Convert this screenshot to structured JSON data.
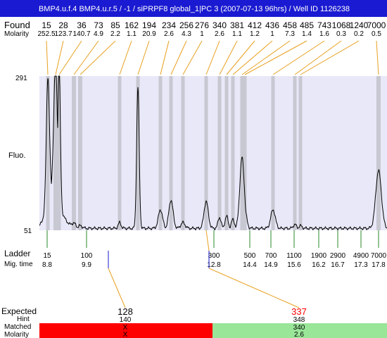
{
  "header": {
    "title": "BMP4.u.f.4  BMP4.u.r.5 / -1 / siPRPF8 global_1|PC 3 (2007-07-13 96hrs) / Well ID 1126238",
    "background": "#1a1ad2"
  },
  "row_labels": {
    "found": "Found",
    "molarity": "Molarity",
    "fluo": "Fluo.",
    "ladder": "Ladder",
    "mig_time": "Mig. time",
    "expected": "Expected",
    "hint": "Hint",
    "matched": "Matched",
    "molarity_bottom": "Molarity"
  },
  "found_sizes": [
    "15",
    "28",
    "36",
    "73",
    "85",
    "162",
    "194",
    "234",
    "256",
    "276",
    "340",
    "381",
    "412",
    "436",
    "458",
    "485",
    "743",
    "1068",
    "1240",
    "7000"
  ],
  "found_molarity": [
    "252.5",
    "123.7",
    "140.7",
    "4.9",
    "2.2",
    "1.1",
    "20.9",
    "2.6",
    "4.3",
    "1",
    "2.6",
    "1.1",
    "1.2",
    "1",
    "7.3",
    "1.4",
    "1.6",
    "0.3",
    "0.2",
    "0.5"
  ],
  "ladder": [
    {
      "size": "15",
      "time": "8.8"
    },
    {
      "size": "100",
      "time": "9.9"
    },
    {
      "size": "300",
      "time": "12.8"
    },
    {
      "size": "500",
      "time": "14.4"
    },
    {
      "size": "700",
      "time": "14.9"
    },
    {
      "size": "1100",
      "time": "15.6"
    },
    {
      "size": "1900",
      "time": "16.2"
    },
    {
      "size": "2900",
      "time": "16.7"
    },
    {
      "size": "4900",
      "time": "17.3"
    },
    {
      "size": "7000",
      "time": "17.8"
    }
  ],
  "expected": [
    {
      "size": "128",
      "hint": "140",
      "matched": "X",
      "molarity": "X",
      "size_color": "#000000",
      "band_color": "#ff0000"
    },
    {
      "size": "337",
      "hint": "348",
      "matched": "340",
      "molarity": "2.6",
      "size_color": "#ff0000",
      "band_color": "#99e699"
    }
  ],
  "colors": {
    "plot_background": "#e8e8f8",
    "peak_band": "#c8c8d2",
    "leader_line": "#e8a020",
    "ladder_tick": "#2a8a2a",
    "expected_marker": "#1a1acc"
  },
  "chart_data": {
    "type": "line",
    "title": "BMP4.u.f.4  BMP4.u.r.5 / -1 / siPRPF8 global_1|PC 3 (2007-07-13 96hrs) / Well ID 1126238",
    "ylabel": "Fluo.",
    "ylim": [
      51,
      291
    ],
    "yticks": [
      "291",
      "51"
    ],
    "x_ladder_sizes": [
      15,
      100,
      300,
      500,
      700,
      1100,
      1900,
      2900,
      4900,
      7000
    ],
    "x_ladder_times": [
      8.8,
      9.9,
      12.8,
      14.4,
      14.9,
      15.6,
      16.2,
      16.7,
      17.3,
      17.8
    ],
    "peaks": [
      {
        "size": 15,
        "molarity": 252.5,
        "height": 245
      },
      {
        "size": 28,
        "molarity": 123.7,
        "height": 258
      },
      {
        "size": 36,
        "molarity": 140.7,
        "height": 270
      },
      {
        "size": 73,
        "molarity": 4.9,
        "height": 58
      },
      {
        "size": 85,
        "molarity": 2.2,
        "height": 55
      },
      {
        "size": 162,
        "molarity": 1.1,
        "height": 60
      },
      {
        "size": 194,
        "molarity": 20.9,
        "height": 271
      },
      {
        "size": 234,
        "molarity": 2.6,
        "height": 80
      },
      {
        "size": 256,
        "molarity": 4.3,
        "height": 95
      },
      {
        "size": 276,
        "molarity": 1,
        "height": 60
      },
      {
        "size": 340,
        "molarity": 2.6,
        "height": 93
      },
      {
        "size": 381,
        "molarity": 1.1,
        "height": 68
      },
      {
        "size": 412,
        "molarity": 1.2,
        "height": 70
      },
      {
        "size": 436,
        "molarity": 1,
        "height": 65
      },
      {
        "size": 458,
        "molarity": 7.3,
        "height": 161
      },
      {
        "size": 485,
        "molarity": 1.4,
        "height": 79
      },
      {
        "size": 743,
        "molarity": 1.6,
        "height": 80
      },
      {
        "size": 1068,
        "molarity": 0.3,
        "height": 57
      },
      {
        "size": 1240,
        "molarity": 0.2,
        "height": 55
      },
      {
        "size": 7000,
        "molarity": 0.5,
        "height": 141
      }
    ],
    "baseline": 51
  }
}
